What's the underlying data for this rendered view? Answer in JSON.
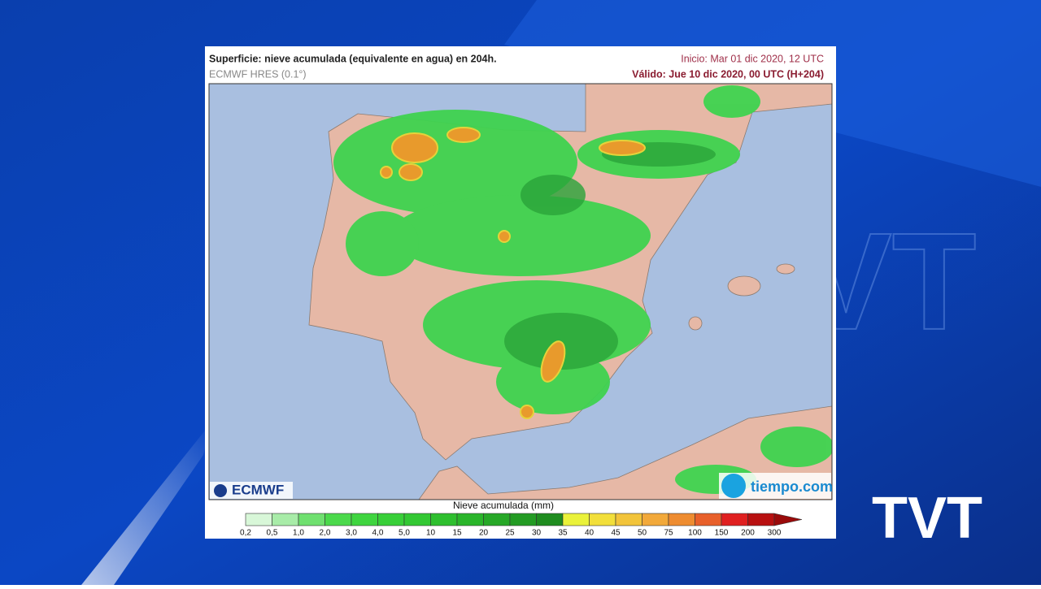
{
  "header": {
    "title": "Superficie: nieve acumulada (equivalente en agua) en 204h.",
    "model": "ECMWF HRES (0.1°)",
    "start": "Inicio: Mar 01 dic 2020, 12 UTC",
    "valid": "Válido: Jue 10 dic 2020, 00 UTC (H+204)"
  },
  "legend": {
    "title": "Nieve acumulada (mm)",
    "labels": [
      "0,2",
      "0,5",
      "1,0",
      "2,0",
      "3,0",
      "4,0",
      "5,0",
      "10",
      "15",
      "20",
      "25",
      "30",
      "35",
      "40",
      "45",
      "50",
      "75",
      "100",
      "150",
      "200",
      "300"
    ]
  },
  "logos": {
    "ecmwf": "ECMWF",
    "tiempo": "tiempo.com",
    "channel": "TVT"
  }
}
